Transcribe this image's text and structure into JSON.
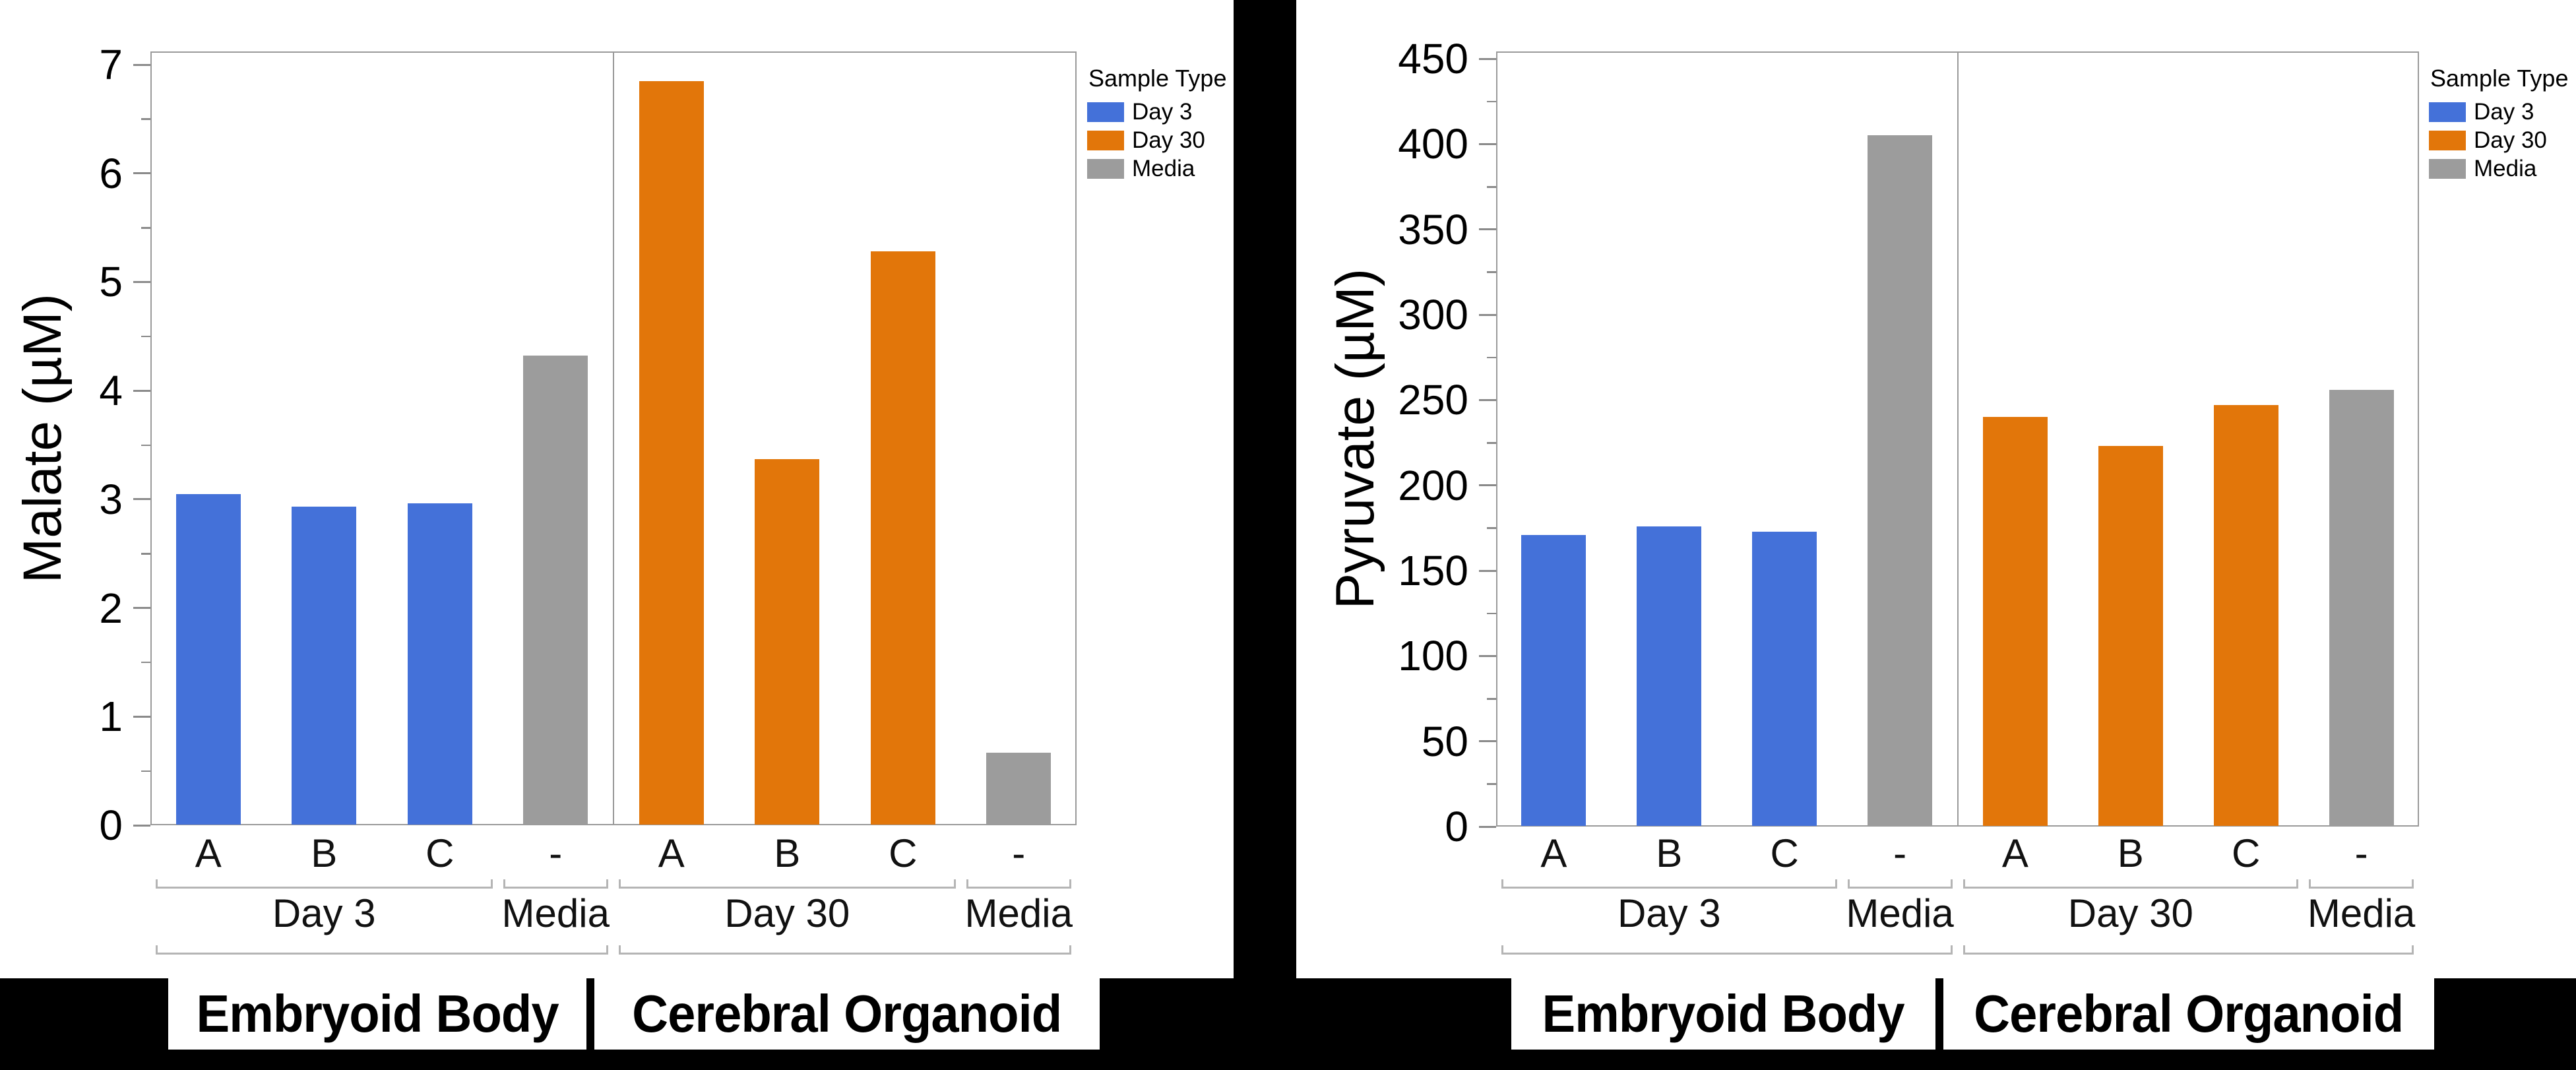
{
  "background_color": "#000000",
  "colors": {
    "day3": "#4471D9",
    "day30": "#E2760A",
    "media": "#9C9C9C",
    "axis": "#9A9A9A",
    "tick": "#8A8A8A",
    "bracket": "#B5B5B5",
    "text": "#000000"
  },
  "legend": {
    "title": "Sample Type",
    "items": [
      {
        "label": "Day 3",
        "color": "#4471D9"
      },
      {
        "label": "Day 30",
        "color": "#E2760A"
      },
      {
        "label": "Media",
        "color": "#9C9C9C"
      }
    ]
  },
  "chart_data": [
    {
      "type": "bar",
      "title": "",
      "ylabel": "Malate (µM)",
      "xlabel": "",
      "ylim": [
        0,
        7.12
      ],
      "yticks": [
        0,
        1,
        2,
        3,
        4,
        5,
        6,
        7
      ],
      "ytick_minor_step": 0.5,
      "grid": false,
      "legend_position": "right",
      "panels": [
        {
          "title": "Embryoid Body",
          "groups": [
            {
              "label": "Day 3",
              "series": "Day 3",
              "categories": [
                "A",
                "B",
                "C"
              ],
              "values": [
                3.05,
                2.93,
                2.96
              ]
            },
            {
              "label": "Media",
              "series": "Media",
              "categories": [
                "-"
              ],
              "values": [
                4.32
              ]
            }
          ]
        },
        {
          "title": "Cerebral Organoid",
          "groups": [
            {
              "label": "Day 30",
              "series": "Day 30",
              "categories": [
                "A",
                "B",
                "C"
              ],
              "values": [
                6.85,
                3.37,
                5.28
              ]
            },
            {
              "label": "Media",
              "series": "Media",
              "categories": [
                "-"
              ],
              "values": [
                0.67
              ]
            }
          ]
        }
      ]
    },
    {
      "type": "bar",
      "title": "",
      "ylabel": "Pyruvate (µM)",
      "xlabel": "",
      "ylim": [
        0,
        454
      ],
      "yticks": [
        0,
        50,
        100,
        150,
        200,
        250,
        300,
        350,
        400,
        450
      ],
      "ytick_minor_step": 25,
      "grid": false,
      "legend_position": "right",
      "panels": [
        {
          "title": "Embryoid Body",
          "groups": [
            {
              "label": "Day 3",
              "series": "Day 3",
              "categories": [
                "A",
                "B",
                "C"
              ],
              "values": [
                171,
                176,
                173
              ]
            },
            {
              "label": "Media",
              "series": "Media",
              "categories": [
                "-"
              ],
              "values": [
                405
              ]
            }
          ]
        },
        {
          "title": "Cerebral Organoid",
          "groups": [
            {
              "label": "Day 30",
              "series": "Day 30",
              "categories": [
                "A",
                "B",
                "C"
              ],
              "values": [
                240,
                223,
                247
              ]
            },
            {
              "label": "Media",
              "series": "Media",
              "categories": [
                "-"
              ],
              "values": [
                256
              ]
            }
          ]
        }
      ]
    }
  ]
}
